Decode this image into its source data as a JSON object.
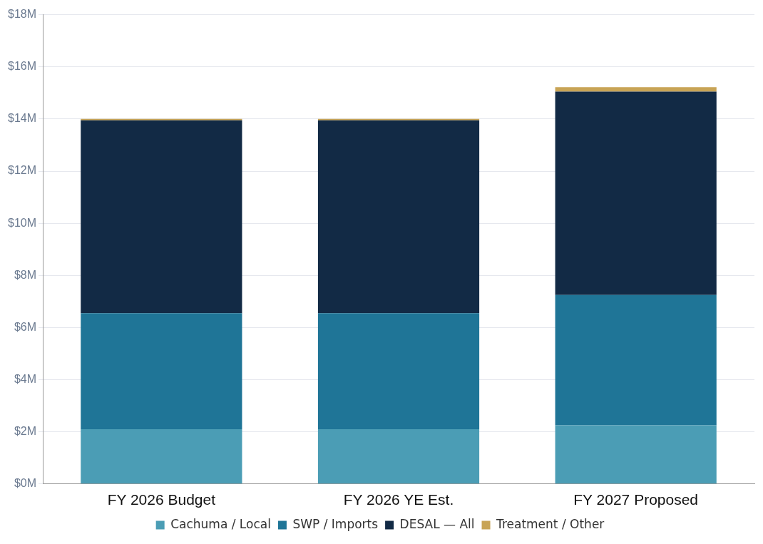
{
  "chart_data": {
    "type": "bar",
    "stacked": true,
    "categories": [
      "FY 2026 Budget",
      "FY 2026 YE Est.",
      "FY 2027 Proposed"
    ],
    "series": [
      {
        "name": "Cachuma / Local",
        "color": "#4b9db5",
        "values": [
          2.1,
          2.1,
          2.25
        ]
      },
      {
        "name": "SWP / Imports",
        "color": "#1f7597",
        "values": [
          4.45,
          4.45,
          5.0
        ]
      },
      {
        "name": "DESAL — All",
        "color": "#122a45",
        "values": [
          7.4,
          7.4,
          7.8
        ]
      },
      {
        "name": "Treatment / Other",
        "color": "#c8a456",
        "values": [
          0.05,
          0.05,
          0.17
        ]
      }
    ],
    "ylim": [
      0,
      18
    ],
    "yticks": [
      {
        "value": 0,
        "label": "$0M"
      },
      {
        "value": 2,
        "label": "$2M"
      },
      {
        "value": 4,
        "label": "$4M"
      },
      {
        "value": 6,
        "label": "$6M"
      },
      {
        "value": 8,
        "label": "$8M"
      },
      {
        "value": 10,
        "label": "$10M"
      },
      {
        "value": 12,
        "label": "$12M"
      },
      {
        "value": 14,
        "label": "$14M"
      },
      {
        "value": 16,
        "label": "$16M"
      },
      {
        "value": 18,
        "label": "$18M"
      }
    ],
    "grid": "y",
    "legend": "bottom"
  }
}
